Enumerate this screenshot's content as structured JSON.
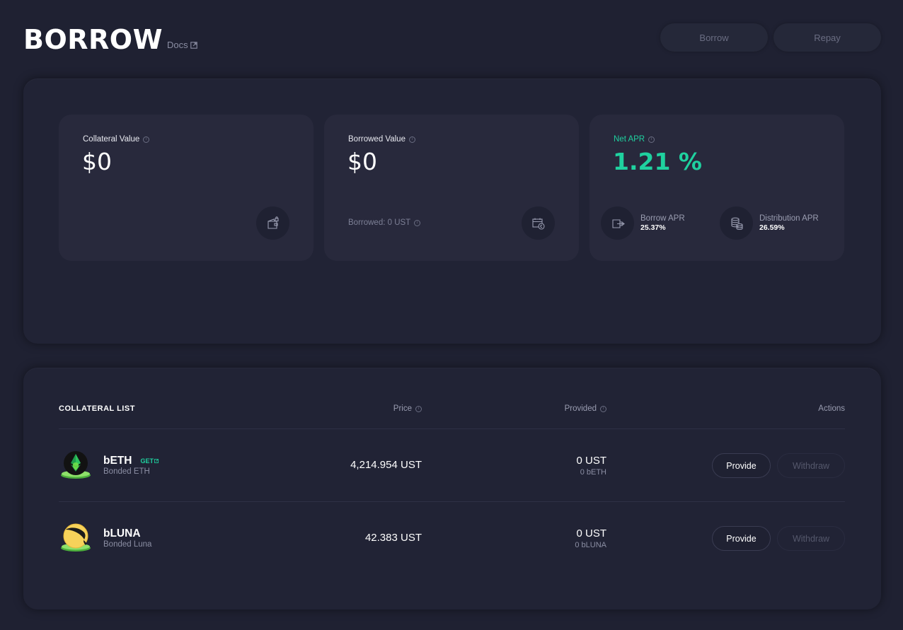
{
  "header": {
    "title": "BORROW",
    "docs_label": "Docs",
    "borrow_label": "Borrow",
    "repay_label": "Repay"
  },
  "overview": {
    "collateral": {
      "label": "Collateral Value",
      "value": "$0"
    },
    "borrowed": {
      "label": "Borrowed Value",
      "value": "$0",
      "sub": "Borrowed: 0 UST"
    },
    "net_apr": {
      "label": "Net APR",
      "value": "1.21 %",
      "borrow_apr_label": "Borrow APR",
      "borrow_apr_value": "25.37%",
      "distribution_apr_label": "Distribution APR",
      "distribution_apr_value": "26.59%"
    }
  },
  "collateral_list": {
    "title": "COLLATERAL LIST",
    "columns": {
      "price": "Price",
      "provided": "Provided",
      "actions": "Actions"
    },
    "rows": [
      {
        "symbol": "bETH",
        "get_label": "GET",
        "name": "Bonded ETH",
        "price": "4,214.954 UST",
        "provided_main": "0 UST",
        "provided_sub": "0 bETH",
        "provide_label": "Provide",
        "withdraw_label": "Withdraw"
      },
      {
        "symbol": "bLUNA",
        "name": "Bonded Luna",
        "price": "42.383 UST",
        "provided_main": "0 UST",
        "provided_sub": "0 bLUNA",
        "provide_label": "Provide",
        "withdraw_label": "Withdraw"
      }
    ]
  },
  "colors": {
    "background": "#1f2132",
    "card": "#28293c",
    "accent": "#1fd19f"
  }
}
